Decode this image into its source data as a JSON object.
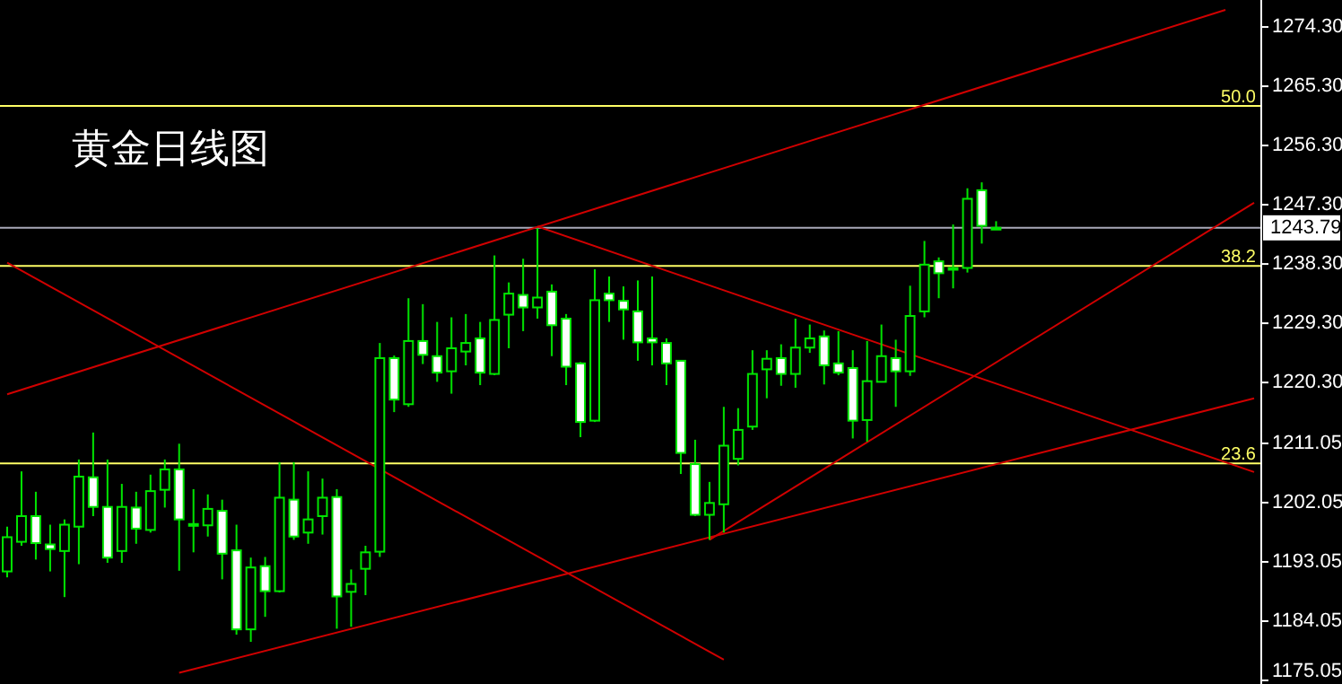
{
  "chart_data": {
    "type": "candlestick",
    "title": "黄金日线图",
    "categories": [
      null,
      null,
      null,
      null,
      null,
      null,
      null,
      null,
      null,
      null,
      null,
      null,
      null,
      null,
      null,
      null,
      null,
      null,
      null,
      null,
      null,
      null,
      null,
      null,
      null,
      null,
      null,
      null,
      null,
      null,
      null,
      null,
      null,
      null,
      null,
      null,
      null,
      null,
      null,
      null,
      null,
      null,
      null,
      null,
      null,
      null,
      null,
      null,
      null,
      null,
      null,
      null,
      null,
      null,
      null,
      null,
      null,
      null,
      null,
      null,
      null,
      null,
      null,
      null,
      null,
      null,
      null,
      null,
      null,
      null,
      null,
      null,
      null,
      null,
      null,
      null,
      null,
      null,
      null,
      null,
      null,
      null,
      null,
      null,
      null,
      null,
      null,
      null
    ],
    "color": "#00e600",
    "ohlc": [
      [
        1191.6,
        1198.4,
        1190.7,
        1196.8
      ],
      [
        1196.1,
        1206.8,
        1195.5,
        1200.0
      ],
      [
        1200.0,
        1203.7,
        1193.4,
        1195.9
      ],
      [
        1195.7,
        1198.7,
        1191.6,
        1195.0
      ],
      [
        1194.7,
        1199.5,
        1187.7,
        1198.7
      ],
      [
        1198.4,
        1208.6,
        1192.7,
        1206.0
      ],
      [
        1205.9,
        1212.7,
        1200.0,
        1201.4
      ],
      [
        1201.4,
        1208.6,
        1192.9,
        1193.7
      ],
      [
        1194.7,
        1204.9,
        1192.9,
        1201.4
      ],
      [
        1201.3,
        1203.7,
        1195.8,
        1198.1
      ],
      [
        1197.9,
        1206.3,
        1197.5,
        1203.8
      ],
      [
        1204.0,
        1208.6,
        1201.3,
        1207.1
      ],
      [
        1207.1,
        1211.0,
        1191.7,
        1199.5
      ],
      [
        1198.8,
        1204.1,
        1194.5,
        1198.7
      ],
      [
        1198.6,
        1203.3,
        1196.9,
        1201.1
      ],
      [
        1200.8,
        1202.5,
        1190.4,
        1194.3
      ],
      [
        1194.8,
        1198.7,
        1182.0,
        1182.8
      ],
      [
        1182.8,
        1193.7,
        1180.9,
        1192.2
      ],
      [
        1192.4,
        1193.8,
        1184.7,
        1188.6
      ],
      [
        1188.6,
        1208.2,
        1188.4,
        1202.8
      ],
      [
        1202.5,
        1208.2,
        1196.4,
        1196.9
      ],
      [
        1197.5,
        1206.8,
        1195.8,
        1199.5
      ],
      [
        1200.0,
        1205.7,
        1197.2,
        1202.8
      ],
      [
        1202.9,
        1204.1,
        1182.9,
        1187.8
      ],
      [
        1188.5,
        1191.9,
        1183.2,
        1189.7
      ],
      [
        1192.0,
        1195.5,
        1188.0,
        1194.5
      ],
      [
        1194.6,
        1226.3,
        1193.8,
        1224.0
      ],
      [
        1224.0,
        1224.4,
        1215.8,
        1217.7
      ],
      [
        1217.0,
        1233.1,
        1216.6,
        1226.6
      ],
      [
        1226.6,
        1232.2,
        1223.1,
        1224.5
      ],
      [
        1224.3,
        1229.5,
        1220.4,
        1221.8
      ],
      [
        1222.0,
        1230.2,
        1218.6,
        1225.5
      ],
      [
        1225.0,
        1230.7,
        1222.9,
        1226.3
      ],
      [
        1227.0,
        1229.5,
        1219.9,
        1221.8
      ],
      [
        1221.6,
        1239.6,
        1221.4,
        1229.8
      ],
      [
        1230.6,
        1235.5,
        1225.5,
        1233.8
      ],
      [
        1233.6,
        1239.1,
        1228.1,
        1231.7
      ],
      [
        1231.7,
        1243.7,
        1230.0,
        1233.2
      ],
      [
        1234.1,
        1235.2,
        1224.3,
        1229.0
      ],
      [
        1230.0,
        1230.7,
        1219.9,
        1222.7
      ],
      [
        1223.2,
        1223.4,
        1212.0,
        1214.3
      ],
      [
        1214.5,
        1237.5,
        1214.3,
        1232.8
      ],
      [
        1233.8,
        1236.4,
        1229.5,
        1232.8
      ],
      [
        1232.7,
        1234.9,
        1226.8,
        1231.4
      ],
      [
        1231.1,
        1235.8,
        1223.6,
        1226.4
      ],
      [
        1227.0,
        1236.4,
        1222.9,
        1226.4
      ],
      [
        1226.3,
        1227.0,
        1219.9,
        1223.2
      ],
      [
        1223.6,
        1223.6,
        1206.4,
        1209.6
      ],
      [
        1207.9,
        1211.6,
        1200.0,
        1200.2
      ],
      [
        1200.2,
        1205.2,
        1196.4,
        1202.0
      ],
      [
        1201.8,
        1216.6,
        1197.5,
        1210.7
      ],
      [
        1208.7,
        1216.4,
        1207.7,
        1213.1
      ],
      [
        1213.6,
        1225.2,
        1213.1,
        1221.6
      ],
      [
        1222.3,
        1225.2,
        1217.9,
        1223.9
      ],
      [
        1224.0,
        1226.1,
        1219.8,
        1221.6
      ],
      [
        1221.6,
        1230.0,
        1219.5,
        1225.6
      ],
      [
        1225.6,
        1229.1,
        1224.8,
        1227.0
      ],
      [
        1227.3,
        1228.2,
        1220.0,
        1222.9
      ],
      [
        1223.2,
        1228.1,
        1221.4,
        1221.8
      ],
      [
        1222.5,
        1225.2,
        1211.8,
        1214.5
      ],
      [
        1214.6,
        1226.6,
        1211.3,
        1220.5
      ],
      [
        1220.4,
        1229.1,
        1220.4,
        1224.3
      ],
      [
        1224.0,
        1226.8,
        1216.6,
        1222.0
      ],
      [
        1222.0,
        1235.0,
        1221.3,
        1230.4
      ],
      [
        1231.1,
        1241.8,
        1230.2,
        1238.2
      ],
      [
        1238.7,
        1239.3,
        1233.1,
        1236.9
      ],
      [
        1237.7,
        1244.3,
        1234.6,
        1237.5
      ],
      [
        1237.7,
        1249.8,
        1237.0,
        1248.2
      ],
      [
        1249.5,
        1250.7,
        1241.4,
        1244.1
      ],
      [
        1243.8,
        1244.8,
        1243.5,
        1243.79
      ],
      null,
      null,
      null,
      null,
      null,
      null,
      null,
      null,
      null,
      null,
      null,
      null,
      null,
      null,
      null,
      null,
      null,
      null
    ],
    "series": [
      {
        "type": "line",
        "color": "#d00000",
        "values": [
          1218.5,
          null,
          null,
          null,
          null,
          null,
          null,
          null,
          null,
          null,
          null,
          null,
          null,
          null,
          null,
          null,
          null,
          null,
          null,
          null,
          null,
          null,
          null,
          null,
          null,
          null,
          null,
          null,
          null,
          null,
          null,
          null,
          null,
          null,
          null,
          null,
          null,
          null,
          null,
          null,
          null,
          null,
          null,
          null,
          null,
          null,
          null,
          null,
          null,
          null,
          null,
          null,
          null,
          null,
          null,
          null,
          null,
          null,
          null,
          null,
          null,
          null,
          null,
          null,
          null,
          null,
          null,
          null,
          null,
          null,
          null,
          null,
          null,
          null,
          null,
          null,
          null,
          null,
          null,
          null,
          null,
          null,
          null,
          null,
          null,
          1276.9,
          null,
          null
        ]
      },
      {
        "type": "line",
        "color": "#d00000",
        "values": [
          null,
          null,
          null,
          null,
          null,
          null,
          null,
          null,
          null,
          null,
          null,
          null,
          null,
          null,
          null,
          null,
          null,
          null,
          null,
          null,
          null,
          null,
          null,
          null,
          null,
          null,
          null,
          null,
          null,
          null,
          null,
          null,
          null,
          null,
          null,
          null,
          null,
          1244.0,
          null,
          null,
          null,
          null,
          null,
          null,
          null,
          null,
          null,
          null,
          null,
          null,
          null,
          null,
          null,
          null,
          null,
          null,
          null,
          null,
          null,
          null,
          null,
          null,
          null,
          null,
          null,
          null,
          null,
          null,
          null,
          null,
          null,
          null,
          null,
          null,
          null,
          null,
          null,
          null,
          null,
          null,
          null,
          null,
          null,
          null,
          null,
          null,
          null,
          1206.7
        ]
      },
      {
        "type": "line",
        "color": "#d00000",
        "values": [
          1238.5,
          null,
          null,
          null,
          null,
          null,
          null,
          null,
          null,
          null,
          null,
          null,
          null,
          null,
          null,
          null,
          null,
          null,
          null,
          null,
          null,
          null,
          null,
          null,
          null,
          null,
          null,
          null,
          null,
          null,
          null,
          null,
          null,
          null,
          null,
          null,
          null,
          null,
          null,
          null,
          null,
          null,
          null,
          null,
          null,
          null,
          null,
          null,
          null,
          null,
          1178.2,
          null,
          null,
          null,
          null,
          null,
          null,
          null,
          null,
          null,
          null,
          null,
          null,
          null,
          null,
          null,
          null,
          null,
          null,
          null,
          null,
          null,
          null,
          null,
          null,
          null,
          null,
          null,
          null,
          null,
          null,
          null,
          null,
          null,
          null,
          null,
          null,
          null
        ]
      },
      {
        "type": "line",
        "color": "#d00000",
        "values": [
          null,
          null,
          null,
          null,
          null,
          null,
          null,
          null,
          null,
          null,
          null,
          null,
          1176.2,
          null,
          null,
          null,
          null,
          null,
          null,
          null,
          null,
          null,
          null,
          null,
          null,
          null,
          null,
          null,
          null,
          null,
          null,
          null,
          null,
          null,
          null,
          null,
          null,
          null,
          null,
          null,
          null,
          null,
          null,
          null,
          null,
          null,
          null,
          null,
          null,
          null,
          null,
          null,
          null,
          null,
          null,
          null,
          null,
          null,
          null,
          null,
          null,
          null,
          null,
          null,
          null,
          null,
          null,
          null,
          null,
          null,
          null,
          null,
          null,
          null,
          null,
          null,
          null,
          null,
          null,
          null,
          null,
          null,
          null,
          null,
          null,
          null,
          null,
          1217.9
        ]
      },
      {
        "type": "line",
        "color": "#d00000",
        "values": [
          null,
          null,
          null,
          null,
          null,
          null,
          null,
          null,
          null,
          null,
          null,
          null,
          null,
          null,
          null,
          null,
          null,
          null,
          null,
          null,
          null,
          null,
          null,
          null,
          null,
          null,
          null,
          null,
          null,
          null,
          null,
          null,
          null,
          null,
          null,
          null,
          null,
          null,
          null,
          null,
          null,
          null,
          null,
          null,
          null,
          null,
          null,
          null,
          null,
          1196.4,
          null,
          null,
          null,
          null,
          null,
          null,
          null,
          null,
          null,
          null,
          null,
          null,
          null,
          null,
          null,
          null,
          null,
          null,
          null,
          null,
          null,
          null,
          null,
          null,
          null,
          null,
          null,
          null,
          null,
          null,
          null,
          null,
          null,
          null,
          null,
          null,
          null,
          1247.6
        ]
      }
    ],
    "ylim": [
      1174.5,
      1278.4
    ],
    "yticks": [
      {
        "value": 1274.3,
        "label": "1274.30"
      },
      {
        "value": 1265.3,
        "label": "1265.30"
      },
      {
        "value": 1256.3,
        "label": "1256.30"
      },
      {
        "value": 1247.3,
        "label": "1247.30"
      },
      {
        "value": 1238.3,
        "label": "1238.30"
      },
      {
        "value": 1229.3,
        "label": "1229.30"
      },
      {
        "value": 1220.3,
        "label": "1220.30"
      },
      {
        "value": 1211.05,
        "label": "1211.05"
      },
      {
        "value": 1202.05,
        "label": "1202.05"
      },
      {
        "value": 1193.05,
        "label": "1193.05"
      },
      {
        "value": 1184.05,
        "label": "1184.05"
      },
      {
        "value": 1175.05,
        "label": "1175.05"
      }
    ],
    "tick_labels": "y",
    "annotations": [
      {
        "text": "50.0",
        "y": 1262.3
      },
      {
        "text": "38.2",
        "y": 1238.0
      },
      {
        "text": "23.6",
        "y": 1208.0
      }
    ],
    "ref_lines": [
      {
        "axis": "y",
        "value": 1262.3,
        "color": "#ffff66"
      },
      {
        "axis": "y",
        "value": 1238.0,
        "color": "#ffff66"
      },
      {
        "axis": "y",
        "value": 1208.0,
        "color": "#ffff66"
      },
      {
        "axis": "y",
        "value": 1243.79,
        "label": "1243.79",
        "color": "#a8a8b8"
      }
    ]
  }
}
